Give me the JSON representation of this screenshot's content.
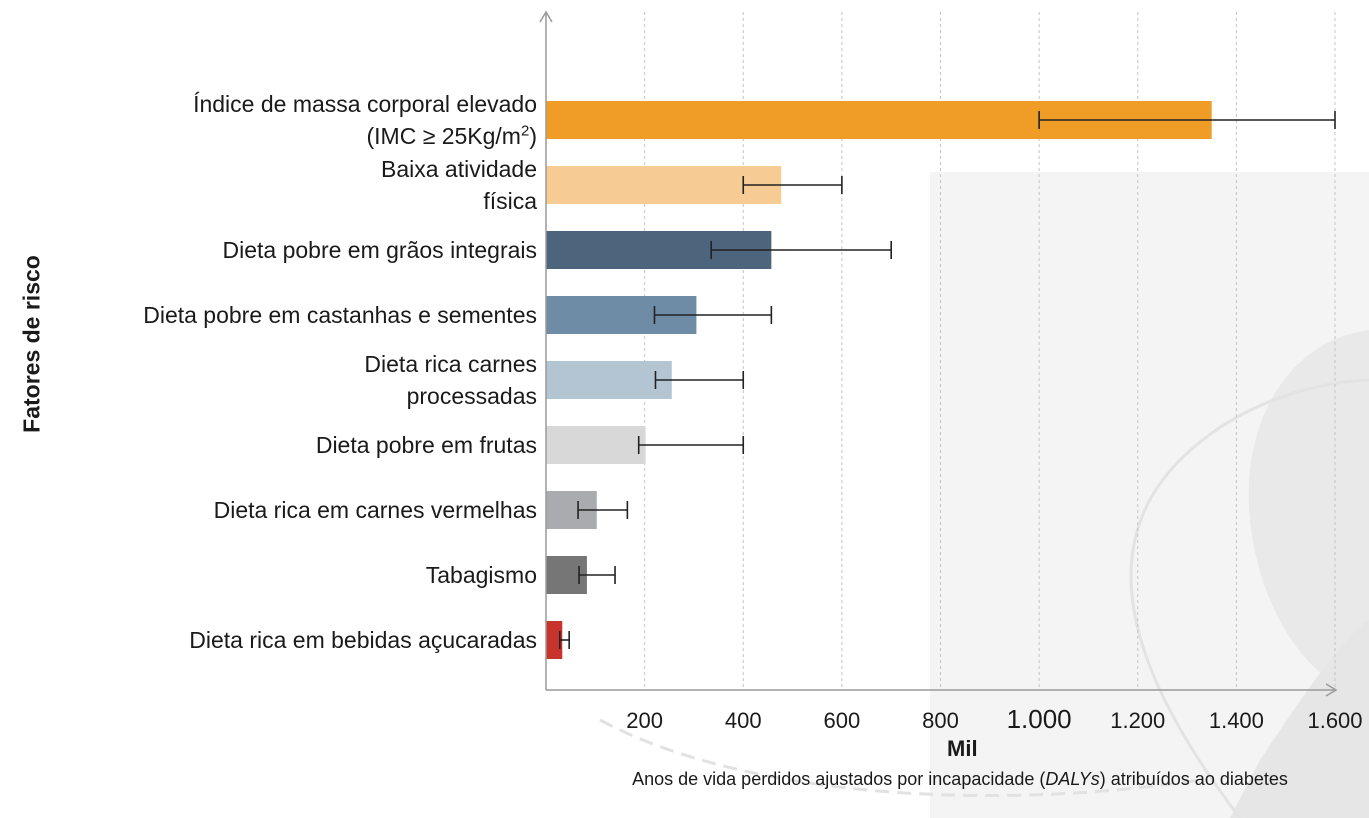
{
  "chart_data": {
    "type": "bar",
    "orientation": "horizontal",
    "ylabel": "Fatores de risco",
    "xunit": "Mil",
    "xlabel_prefix": "Anos de vida perdidos ajustados por incapacidade (",
    "xlabel_italic": "DALYs",
    "xlabel_suffix": ") atribuídos ao diabetes",
    "xlim": [
      0,
      1600
    ],
    "xticks": [
      {
        "value": 200,
        "label": "200"
      },
      {
        "value": 400,
        "label": "400"
      },
      {
        "value": 600,
        "label": "600"
      },
      {
        "value": 800,
        "label": "800"
      },
      {
        "value": 1000,
        "label": "1.000"
      },
      {
        "value": 1200,
        "label": "1.200"
      },
      {
        "value": 1400,
        "label": "1.400"
      },
      {
        "value": 1600,
        "label": "1.600"
      }
    ],
    "grid": "vertical dashed",
    "categories": [
      {
        "line1": "Índice de massa corporal elevado",
        "line2": "(IMC ≥ 25Kg/m",
        "sup": "2",
        "line2_end": ")",
        "value": 1350,
        "err_low": 1000,
        "err_high": 1600,
        "color": "#f09d28"
      },
      {
        "line1": "Baixa atividade",
        "line2": "física",
        "value": 477,
        "err_low": 400,
        "err_high": 600,
        "color": "#f6cc94"
      },
      {
        "line1": "Dieta pobre em grãos integrais",
        "value": 457,
        "err_low": 335,
        "err_high": 700,
        "color": "#4c647c"
      },
      {
        "line1": "Dieta pobre em castanhas e sementes",
        "value": 305,
        "err_low": 220,
        "err_high": 457,
        "color": "#6e8ca6"
      },
      {
        "line1": "Dieta rica carnes",
        "line2": "processadas",
        "value": 255,
        "err_low": 222,
        "err_high": 400,
        "color": "#b3c4d2"
      },
      {
        "line1": "Dieta pobre em frutas",
        "value": 202,
        "err_low": 188,
        "err_high": 400,
        "color": "#d8d8d8"
      },
      {
        "line1": "Dieta rica em carnes vermelhas",
        "value": 103,
        "err_low": 65,
        "err_high": 165,
        "color": "#a9abaf"
      },
      {
        "line1": "Tabagismo",
        "value": 83,
        "err_low": 67,
        "err_high": 140,
        "color": "#767676"
      },
      {
        "line1": "Dieta rica em bebidas açucaradas",
        "value": 33,
        "err_low": 28,
        "err_high": 47,
        "color": "#c8342d"
      }
    ]
  }
}
